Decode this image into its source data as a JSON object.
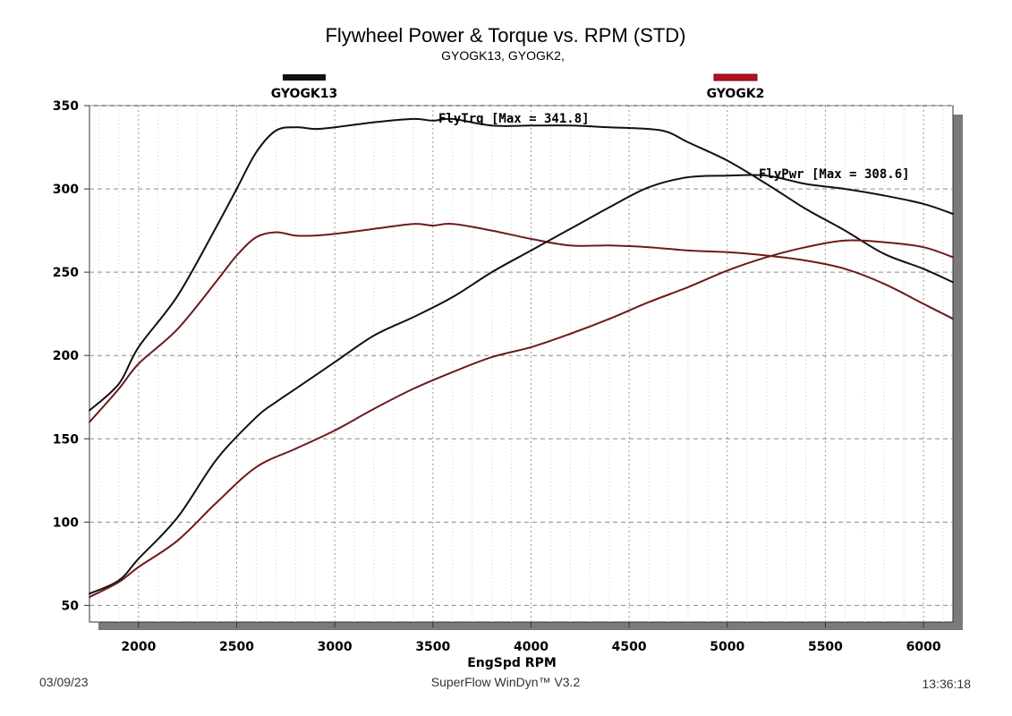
{
  "chart_data": {
    "type": "line",
    "title": "Flywheel Power & Torque vs. RPM (STD)",
    "subtitle": "GYOGK13, GYOGK2,",
    "xlabel": "EngSpd RPM",
    "ylabel": "",
    "xlim": [
      1750,
      6150
    ],
    "ylim": [
      40,
      350
    ],
    "xticks": [
      2000,
      2500,
      3000,
      3500,
      4000,
      4500,
      5000,
      5500,
      6000
    ],
    "yticks": [
      50,
      100,
      150,
      200,
      250,
      300,
      350
    ],
    "grid": true,
    "legend": [
      {
        "label": "GYOGK13",
        "color": "#111111"
      },
      {
        "label": "GYOGK2",
        "color": "#b0141c"
      }
    ],
    "annotations": [
      {
        "text": "FlyTrq [Max = 341.8]",
        "x": 3550,
        "y": 342
      },
      {
        "text": "FlyPwr [Max = 308.6]",
        "x": 5400,
        "y": 309
      }
    ],
    "series": [
      {
        "name": "GYOGK13",
        "quantity": "FlyTrq",
        "color": "#111111",
        "x": [
          1750,
          1900,
          2000,
          2200,
          2400,
          2500,
          2600,
          2700,
          2800,
          2900,
          3000,
          3200,
          3400,
          3500,
          3600,
          3800,
          4000,
          4200,
          4400,
          4600,
          4700,
          4800,
          5000,
          5200,
          5400,
          5600,
          5800,
          6000,
          6150
        ],
        "y": [
          167,
          183,
          205,
          236,
          278,
          300,
          322,
          335,
          337,
          336,
          337,
          340,
          342,
          341,
          342,
          338,
          338,
          338,
          337,
          336,
          334,
          328,
          317,
          303,
          288,
          275,
          261,
          252,
          244
        ]
      },
      {
        "name": "GYOGK2",
        "quantity": "FlyTrq",
        "color": "#6e1a1a",
        "x": [
          1750,
          1900,
          2000,
          2200,
          2400,
          2500,
          2600,
          2700,
          2800,
          2900,
          3000,
          3200,
          3400,
          3500,
          3600,
          3800,
          4000,
          4200,
          4400,
          4600,
          4800,
          5000,
          5200,
          5400,
          5600,
          5800,
          6000,
          6150
        ],
        "y": [
          160,
          180,
          195,
          216,
          245,
          260,
          271,
          274,
          272,
          272,
          273,
          276,
          279,
          278,
          279,
          275,
          270,
          266,
          266,
          265,
          263,
          262,
          260,
          257,
          252,
          243,
          231,
          222
        ]
      },
      {
        "name": "GYOGK13",
        "quantity": "FlyPwr",
        "color": "#111111",
        "x": [
          1750,
          1900,
          2000,
          2200,
          2400,
          2600,
          2700,
          2800,
          3000,
          3200,
          3400,
          3600,
          3800,
          4000,
          4200,
          4400,
          4600,
          4800,
          5000,
          5200,
          5400,
          5600,
          5800,
          6000,
          6150
        ],
        "y": [
          57,
          65,
          78,
          103,
          138,
          163,
          172,
          180,
          196,
          212,
          223,
          235,
          250,
          263,
          276,
          289,
          301,
          307,
          308,
          308,
          303,
          300,
          296,
          291,
          285
        ]
      },
      {
        "name": "GYOGK2",
        "quantity": "FlyPwr",
        "color": "#6e1a1a",
        "x": [
          1750,
          1900,
          2000,
          2200,
          2400,
          2600,
          2800,
          3000,
          3200,
          3400,
          3600,
          3800,
          4000,
          4200,
          4400,
          4600,
          4800,
          5000,
          5200,
          5400,
          5600,
          5800,
          6000,
          6150
        ],
        "y": [
          55,
          64,
          73,
          89,
          112,
          133,
          144,
          155,
          168,
          180,
          190,
          199,
          205,
          213,
          222,
          232,
          241,
          251,
          259,
          265,
          269,
          268,
          265,
          259
        ]
      }
    ]
  },
  "footer": {
    "date": "03/09/23",
    "software": "SuperFlow WinDyn™ V3.2",
    "time": "13:36:18"
  }
}
